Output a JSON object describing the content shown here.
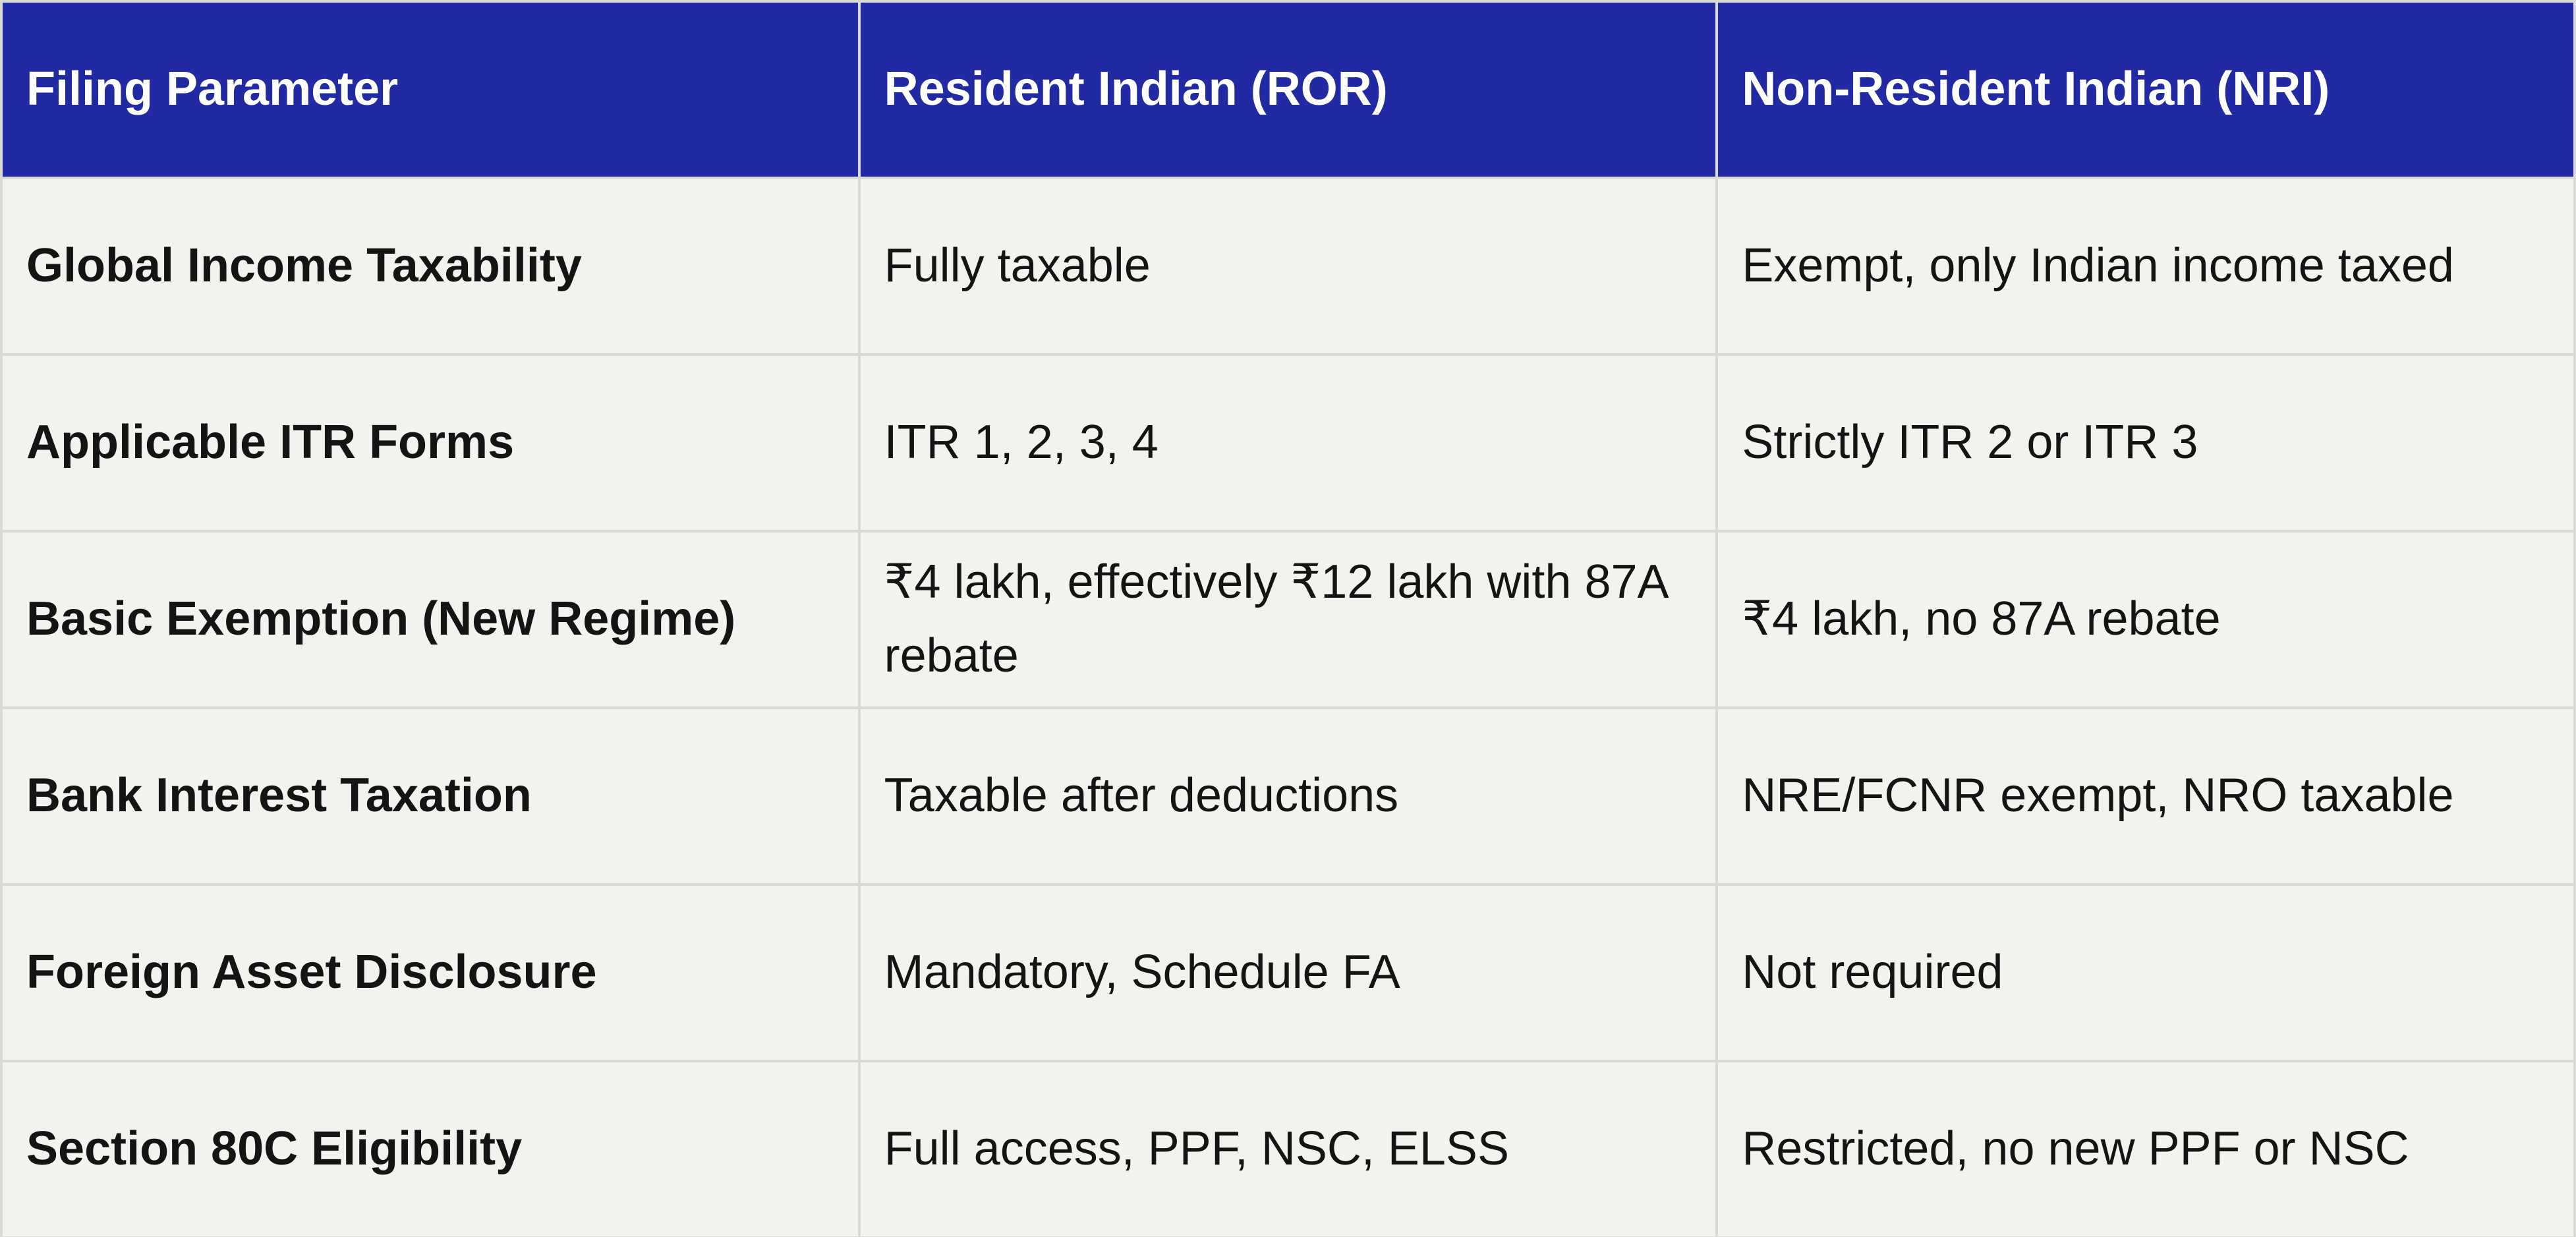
{
  "table": {
    "header": [
      "Filing Parameter",
      "Resident Indian (ROR)",
      "Non-Resident Indian (NRI)"
    ],
    "rows": [
      [
        "Global Income Taxability",
        "Fully taxable",
        "Exempt, only Indian income taxed"
      ],
      [
        "Applicable ITR Forms",
        "ITR 1, 2, 3, 4",
        "Strictly ITR 2 or ITR 3"
      ],
      [
        "Basic Exemption (New Regime)",
        "₹4 lakh, effectively ₹12 lakh with 87A rebate",
        "₹4 lakh, no 87A rebate"
      ],
      [
        "Bank Interest Taxation",
        "Taxable after deductions",
        "NRE/FCNR exempt, NRO taxable"
      ],
      [
        "Foreign Asset Disclosure",
        "Mandatory, Schedule FA",
        "Not required"
      ],
      [
        "Section 80C Eligibility",
        "Full access, PPF, NSC, ELSS",
        "Restricted, no new PPF or NSC"
      ]
    ]
  }
}
